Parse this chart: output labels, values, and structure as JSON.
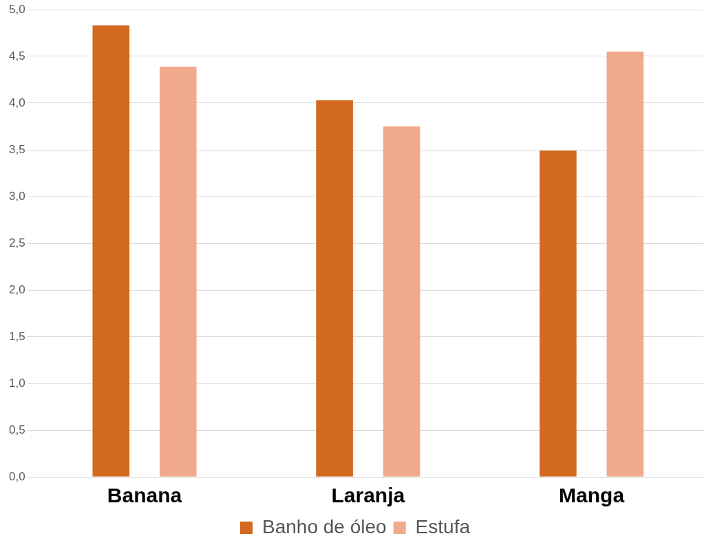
{
  "chart_data": {
    "type": "bar",
    "categories": [
      "Banana",
      "Laranja",
      "Manga"
    ],
    "series": [
      {
        "name": "Banho de óleo",
        "color": "#d2691e",
        "values": [
          4.83,
          4.03,
          3.49
        ]
      },
      {
        "name": "Estufa",
        "color": "#f0a98a",
        "values": [
          4.39,
          3.75,
          4.55
        ]
      }
    ],
    "ylim": [
      0,
      5
    ],
    "yticks": [
      {
        "value": 0,
        "label": "0,0"
      },
      {
        "value": 0.5,
        "label": "0,5"
      },
      {
        "value": 1,
        "label": "1,0"
      },
      {
        "value": 1.5,
        "label": "1,5"
      },
      {
        "value": 2,
        "label": "2,0"
      },
      {
        "value": 2.5,
        "label": "2,5"
      },
      {
        "value": 3,
        "label": "3,0"
      },
      {
        "value": 3.5,
        "label": "3,5"
      },
      {
        "value": 4,
        "label": "4,0"
      },
      {
        "value": 4.5,
        "label": "4,5"
      },
      {
        "value": 5,
        "label": "5,0"
      }
    ],
    "grid": "y",
    "legend": "bottom"
  }
}
